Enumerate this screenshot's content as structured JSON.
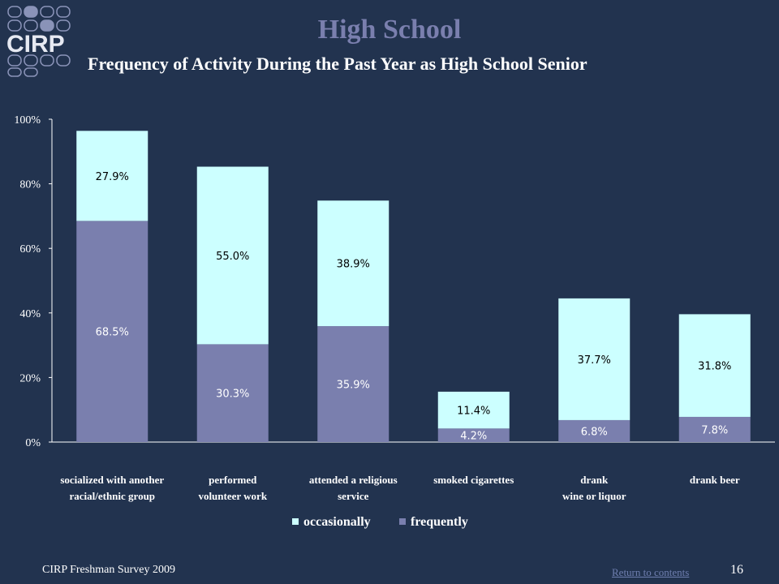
{
  "header": {
    "logo_text": "CIRP",
    "title": "High School",
    "subtitle": "Frequency of Activity During the Past Year as High School Senior"
  },
  "footer": {
    "source": "CIRP Freshman Survey 2009",
    "link_label": "Return to contents",
    "page_number": "16"
  },
  "colors": {
    "background": "#22334f",
    "occasionally": "#ccffff",
    "frequently": "#7a7fae",
    "title": "#7a7fae"
  },
  "chart_data": {
    "type": "bar",
    "stacked": true,
    "categories": [
      [
        "socialized with another",
        "racial/ethnic group"
      ],
      [
        "performed",
        "volunteer work"
      ],
      [
        "attended a religious",
        "service"
      ],
      [
        "smoked cigarettes"
      ],
      [
        "drank",
        "wine or liquor"
      ],
      [
        "drank beer"
      ]
    ],
    "series": [
      {
        "name": "frequently",
        "values": [
          68.5,
          30.3,
          35.9,
          4.2,
          6.8,
          7.8
        ],
        "labels": [
          "68.5%",
          "30.3%",
          "35.9%",
          "4.2%",
          "6.8%",
          "7.8%"
        ]
      },
      {
        "name": "occasionally",
        "values": [
          27.9,
          55.0,
          38.9,
          11.4,
          37.7,
          31.8
        ],
        "labels": [
          "27.9%",
          "55.0%",
          "38.9%",
          "11.4%",
          "37.7%",
          "31.8%"
        ]
      }
    ],
    "legend_order": [
      "occasionally",
      "frequently"
    ],
    "ylim": [
      0,
      100
    ],
    "yticks": [
      0,
      20,
      40,
      60,
      80,
      100
    ],
    "ytick_labels": [
      "0%",
      "20%",
      "40%",
      "60%",
      "80%",
      "100%"
    ],
    "legend_position": "bottom",
    "grid": false
  }
}
